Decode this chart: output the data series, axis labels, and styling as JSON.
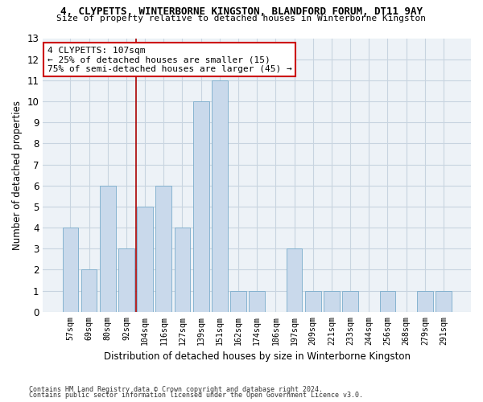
{
  "title1": "4, CLYPETTS, WINTERBORNE KINGSTON, BLANDFORD FORUM, DT11 9AY",
  "title2": "Size of property relative to detached houses in Winterborne Kingston",
  "xlabel": "Distribution of detached houses by size in Winterborne Kingston",
  "ylabel": "Number of detached properties",
  "categories": [
    "57sqm",
    "69sqm",
    "80sqm",
    "92sqm",
    "104sqm",
    "116sqm",
    "127sqm",
    "139sqm",
    "151sqm",
    "162sqm",
    "174sqm",
    "186sqm",
    "197sqm",
    "209sqm",
    "221sqm",
    "233sqm",
    "244sqm",
    "256sqm",
    "268sqm",
    "279sqm",
    "291sqm"
  ],
  "values": [
    4,
    2,
    6,
    3,
    5,
    6,
    4,
    10,
    11,
    1,
    1,
    0,
    3,
    1,
    1,
    1,
    0,
    1,
    0,
    1,
    1
  ],
  "bar_color": "#c9d9eb",
  "bar_edgecolor": "#7aaccb",
  "ylim": [
    0,
    13
  ],
  "yticks": [
    0,
    1,
    2,
    3,
    4,
    5,
    6,
    7,
    8,
    9,
    10,
    11,
    12,
    13
  ],
  "vline_x_index": 4,
  "vline_color": "#aa0000",
  "annotation_text": "4 CLYPETTS: 107sqm\n← 25% of detached houses are smaller (15)\n75% of semi-detached houses are larger (45) →",
  "annotation_box_facecolor": "#ffffff",
  "annotation_box_edgecolor": "#cc0000",
  "footer1": "Contains HM Land Registry data © Crown copyright and database right 2024.",
  "footer2": "Contains public sector information licensed under the Open Government Licence v3.0.",
  "grid_color": "#c8d4e0",
  "background_color": "#edf2f7"
}
